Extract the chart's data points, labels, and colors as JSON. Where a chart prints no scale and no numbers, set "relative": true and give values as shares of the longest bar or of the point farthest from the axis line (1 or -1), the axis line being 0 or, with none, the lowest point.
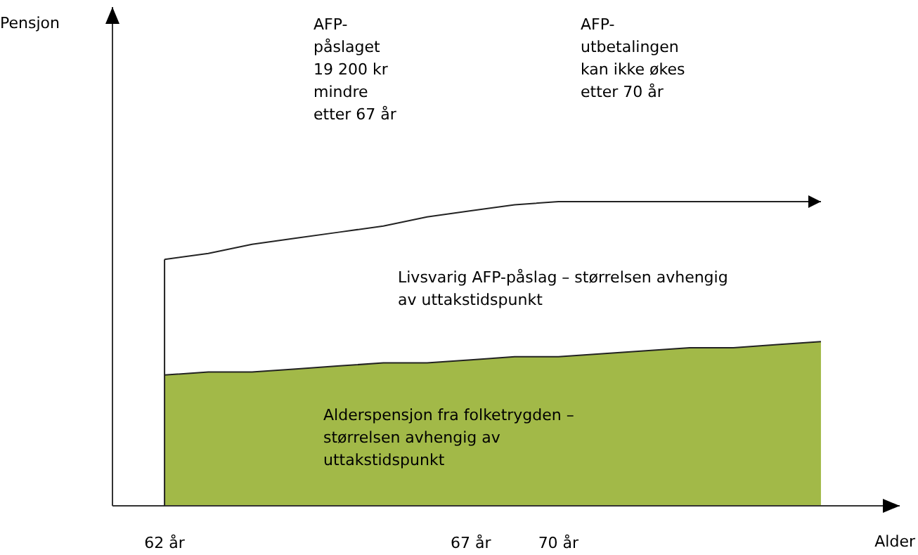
{
  "chart_data": {
    "type": "area",
    "relative": true,
    "xlabel": "Alder",
    "categories": [
      "62 år",
      null,
      null,
      null,
      null,
      null,
      null,
      "67 år",
      null,
      "70 år",
      null,
      null,
      null,
      null,
      null,
      null
    ],
    "series": [
      {
        "color": "#a2b948",
        "values": [
          0.43,
          0.44,
          0.44,
          0.45,
          0.46,
          0.47,
          0.47,
          0.48,
          0.49,
          0.49,
          0.5,
          0.51,
          0.52,
          0.52,
          0.53,
          0.54
        ]
      },
      {
        "type": "line",
        "color": "#222222",
        "values": [
          0.81,
          0.83,
          0.86,
          0.88,
          0.9,
          0.92,
          0.95,
          0.97,
          0.99,
          1,
          1,
          1,
          1,
          1,
          1,
          1
        ]
      }
    ],
    "annotations": [
      "AFP-\npåslaget\n19 200 kr\nmindre\netter 67 år",
      "AFP-\nutbetalingen\nkan ikke økes\netter 70 år",
      "Livsvarig AFP-påslag – størrelsen avhengig\nav uttakstidspunkt",
      "Alderspensjon fra folketrygden –\nstørrelsen avhengig av\nuttakstidspunkt",
      "Pensjon"
    ]
  }
}
